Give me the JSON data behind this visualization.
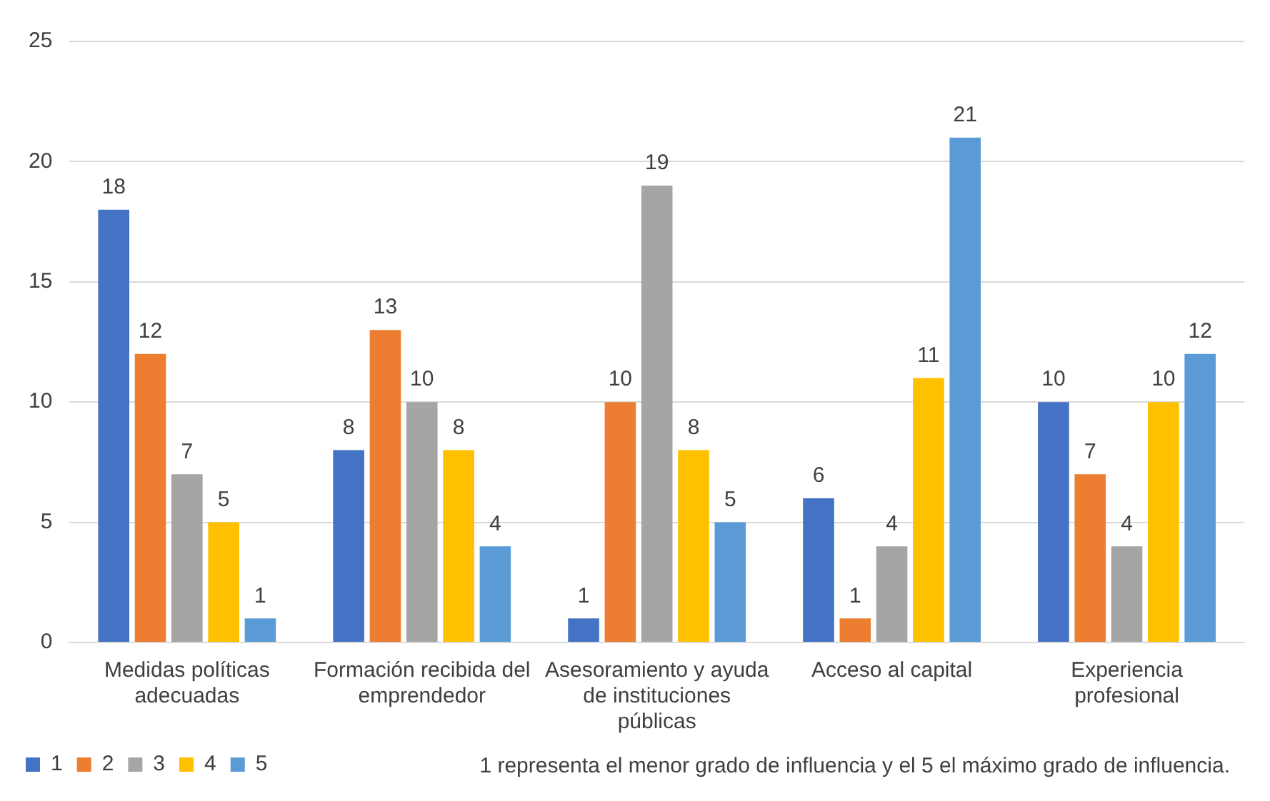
{
  "chart_data": {
    "type": "bar",
    "categories": [
      "Medidas políticas adecuadas",
      "Formación recibida del emprendedor",
      "Asesoramiento y ayuda de instituciones públicas",
      "Acceso al capital",
      "Experiencia profesional"
    ],
    "series": [
      {
        "name": "1",
        "color": "#4472c4",
        "values": [
          18,
          8,
          1,
          6,
          10
        ]
      },
      {
        "name": "2",
        "color": "#ed7d31",
        "values": [
          12,
          13,
          10,
          1,
          7
        ]
      },
      {
        "name": "3",
        "color": "#a5a5a5",
        "values": [
          7,
          10,
          19,
          4,
          4
        ]
      },
      {
        "name": "4",
        "color": "#ffc000",
        "values": [
          5,
          8,
          8,
          11,
          10
        ]
      },
      {
        "name": "5",
        "color": "#5b9bd5",
        "values": [
          1,
          4,
          5,
          21,
          12
        ]
      }
    ],
    "ylim": [
      0,
      25
    ],
    "yticks": [
      0,
      5,
      10,
      15,
      20,
      25
    ],
    "grid": "y",
    "legend": "bottom left",
    "data_labels": true,
    "annotations": [
      "1 representa el menor grado de influencia y el 5 el máximo grado de influencia."
    ]
  }
}
